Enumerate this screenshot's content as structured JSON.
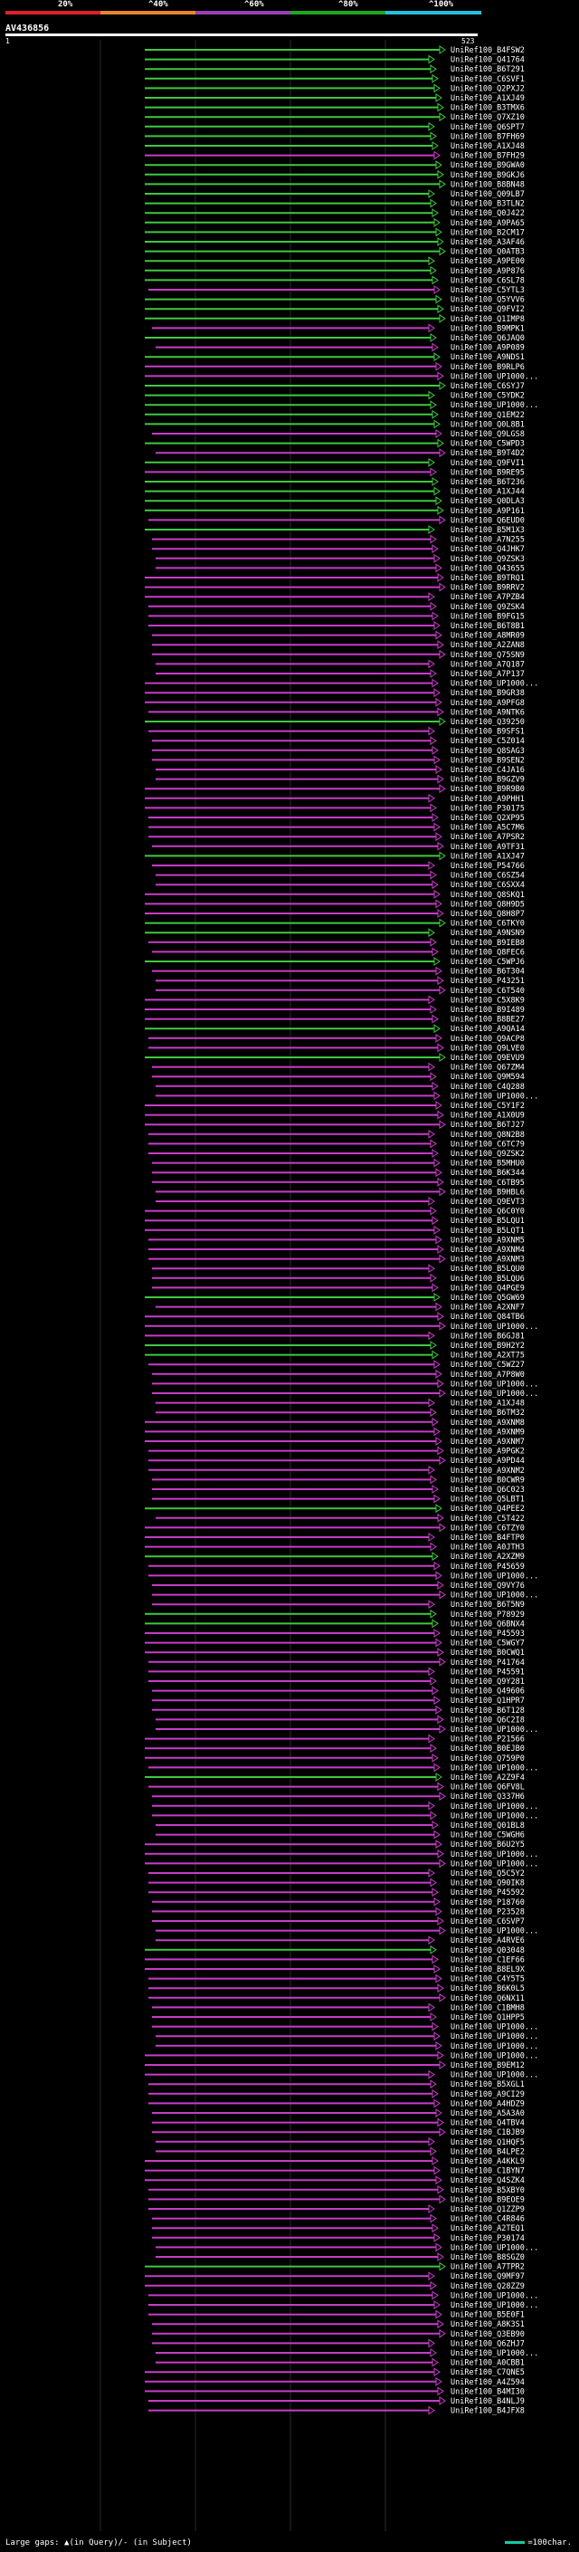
{
  "scale": {
    "labels": [
      "20%",
      "^40%",
      "^60%",
      "^80%",
      "^100%"
    ],
    "colors": [
      "#e0202a",
      "#e8862a",
      "#9b3fb5",
      "#1ea81e",
      "#25c0e0"
    ]
  },
  "query": {
    "id": "AV436856",
    "start": "1",
    "end": "523"
  },
  "legend": {
    "gaps_text": "Large gaps: ▲(in Query)/- (in Subject)",
    "scale_text": "=100char."
  },
  "hit_colors": {
    "high": "#3ec93e",
    "mid": "#c83cc8"
  },
  "hits": [
    {
      "label": "UniRef100_B4FSW2",
      "c": "high"
    },
    {
      "label": "UniRef100_Q41764",
      "c": "high"
    },
    {
      "label": "UniRef100_B6T291",
      "c": "high"
    },
    {
      "label": "UniRef100_C6SVF1",
      "c": "high"
    },
    {
      "label": "UniRef100_Q2PXJ2",
      "c": "high"
    },
    {
      "label": "UniRef100_A1XJ49",
      "c": "high"
    },
    {
      "label": "UniRef100_B3TMX6",
      "c": "high"
    },
    {
      "label": "UniRef100_Q7XZ10",
      "c": "high"
    },
    {
      "label": "UniRef100_Q6SPT7",
      "c": "high"
    },
    {
      "label": "UniRef100_B7FH69",
      "c": "high"
    },
    {
      "label": "UniRef100_A1XJ48",
      "c": "high"
    },
    {
      "label": "UniRef100_B7FH29",
      "c": "mid"
    },
    {
      "label": "UniRef100_B9GWA0",
      "c": "high"
    },
    {
      "label": "UniRef100_B9GKJ6",
      "c": "high"
    },
    {
      "label": "UniRef100_B8BN48",
      "c": "high"
    },
    {
      "label": "UniRef100_Q09LB7",
      "c": "high"
    },
    {
      "label": "UniRef100_B3TLN2",
      "c": "high"
    },
    {
      "label": "UniRef100_Q0J422",
      "c": "high"
    },
    {
      "label": "UniRef100_A9PA65",
      "c": "high"
    },
    {
      "label": "UniRef100_B2CM17",
      "c": "high"
    },
    {
      "label": "UniRef100_A3AF46",
      "c": "high"
    },
    {
      "label": "UniRef100_Q0ATB3",
      "c": "high"
    },
    {
      "label": "UniRef100_A9PE00",
      "c": "high"
    },
    {
      "label": "UniRef100_A9P876",
      "c": "high"
    },
    {
      "label": "UniRef100_C6SL78",
      "c": "high"
    },
    {
      "label": "UniRef100_C5YTL3",
      "c": "mid"
    },
    {
      "label": "UniRef100_Q5YVV6",
      "c": "high"
    },
    {
      "label": "UniRef100_Q9FVI2",
      "c": "high"
    },
    {
      "label": "UniRef100_Q1IMP8",
      "c": "high"
    },
    {
      "label": "UniRef100_B9MPK1",
      "c": "mid"
    },
    {
      "label": "UniRef100_Q6JAQ0",
      "c": "high"
    },
    {
      "label": "UniRef100_A9P089",
      "c": "mid"
    },
    {
      "label": "UniRef100_A9NDS1",
      "c": "high"
    },
    {
      "label": "UniRef100_B9RLP6",
      "c": "mid"
    },
    {
      "label": "UniRef100_UP1000...",
      "c": "mid"
    },
    {
      "label": "UniRef100_C6SYJ7",
      "c": "high"
    },
    {
      "label": "UniRef100_C5YDK2",
      "c": "high"
    },
    {
      "label": "UniRef100_UP1000...",
      "c": "high"
    },
    {
      "label": "UniRef100_Q1EM22",
      "c": "high"
    },
    {
      "label": "UniRef100_Q0L8B1",
      "c": "high"
    },
    {
      "label": "UniRef100_Q9LGS8",
      "c": "mid"
    },
    {
      "label": "UniRef100_C5WPD3",
      "c": "high"
    },
    {
      "label": "UniRef100_B9T4D2",
      "c": "mid"
    },
    {
      "label": "UniRef100_Q9FVI1",
      "c": "high"
    },
    {
      "label": "UniRef100_B9RE95",
      "c": "mid"
    },
    {
      "label": "UniRef100_B6T236",
      "c": "high"
    },
    {
      "label": "UniRef100_A1XJ44",
      "c": "high"
    },
    {
      "label": "UniRef100_Q0DLA3",
      "c": "high"
    },
    {
      "label": "UniRef100_A9P161",
      "c": "high"
    },
    {
      "label": "UniRef100_Q6EUD0",
      "c": "mid"
    },
    {
      "label": "UniRef100_B5M1X3",
      "c": "high"
    },
    {
      "label": "UniRef100_A7N255",
      "c": "mid"
    },
    {
      "label": "UniRef100_Q4JHK7",
      "c": "mid"
    },
    {
      "label": "UniRef100_Q9ZSK3",
      "c": "mid"
    },
    {
      "label": "UniRef100_Q43655",
      "c": "mid"
    },
    {
      "label": "UniRef100_B9TRQ1",
      "c": "mid"
    },
    {
      "label": "UniRef100_B9RRV2",
      "c": "mid"
    },
    {
      "label": "UniRef100_A7PZB4",
      "c": "mid"
    },
    {
      "label": "UniRef100_Q9ZSK4",
      "c": "mid"
    },
    {
      "label": "UniRef100_B9FG15",
      "c": "mid"
    },
    {
      "label": "UniRef100_B6T8B1",
      "c": "mid"
    },
    {
      "label": "UniRef100_A8MR09",
      "c": "mid"
    },
    {
      "label": "UniRef100_A2ZAN8",
      "c": "mid"
    },
    {
      "label": "UniRef100_Q75SN9",
      "c": "mid"
    },
    {
      "label": "UniRef100_A7Q187",
      "c": "mid"
    },
    {
      "label": "UniRef100_A7P137",
      "c": "mid"
    },
    {
      "label": "UniRef100_UP1000...",
      "c": "mid"
    },
    {
      "label": "UniRef100_B9GR38",
      "c": "mid"
    },
    {
      "label": "UniRef100_A9PFG8",
      "c": "mid"
    },
    {
      "label": "UniRef100_A9NTK6",
      "c": "mid"
    },
    {
      "label": "UniRef100_Q39250",
      "c": "high"
    },
    {
      "label": "UniRef100_B9SFS1",
      "c": "mid"
    },
    {
      "label": "UniRef100_C5Z014",
      "c": "mid"
    },
    {
      "label": "UniRef100_Q8SAG3",
      "c": "mid"
    },
    {
      "label": "UniRef100_B9SEN2",
      "c": "mid"
    },
    {
      "label": "UniRef100_C4JA16",
      "c": "mid"
    },
    {
      "label": "UniRef100_B9GZV9",
      "c": "mid"
    },
    {
      "label": "UniRef100_B9R9B0",
      "c": "mid"
    },
    {
      "label": "UniRef100_A9PHH1",
      "c": "mid"
    },
    {
      "label": "UniRef100_P30175",
      "c": "mid"
    },
    {
      "label": "UniRef100_Q2XP95",
      "c": "mid"
    },
    {
      "label": "UniRef100_A5C7M6",
      "c": "mid"
    },
    {
      "label": "UniRef100_A7PSR2",
      "c": "mid"
    },
    {
      "label": "UniRef100_A9TF31",
      "c": "mid"
    },
    {
      "label": "UniRef100_A1XJ47",
      "c": "high"
    },
    {
      "label": "UniRef100_P54766",
      "c": "mid"
    },
    {
      "label": "UniRef100_C6SZ54",
      "c": "mid"
    },
    {
      "label": "UniRef100_C6SXX4",
      "c": "mid"
    },
    {
      "label": "UniRef100_Q8SKQ1",
      "c": "mid"
    },
    {
      "label": "UniRef100_Q8H9D5",
      "c": "mid"
    },
    {
      "label": "UniRef100_Q8H8P7",
      "c": "mid"
    },
    {
      "label": "UniRef100_C6TKY0",
      "c": "high"
    },
    {
      "label": "UniRef100_A9NSN9",
      "c": "high"
    },
    {
      "label": "UniRef100_B9IEB8",
      "c": "mid"
    },
    {
      "label": "UniRef100_Q8FEC6",
      "c": "mid"
    },
    {
      "label": "UniRef100_C5WPJ6",
      "c": "high"
    },
    {
      "label": "UniRef100_B6T304",
      "c": "mid"
    },
    {
      "label": "UniRef100_P43251",
      "c": "mid"
    },
    {
      "label": "UniRef100_C6T540",
      "c": "mid"
    },
    {
      "label": "UniRef100_C5X8K9",
      "c": "mid"
    },
    {
      "label": "UniRef100_B9I489",
      "c": "mid"
    },
    {
      "label": "UniRef100_B8BE27",
      "c": "mid"
    },
    {
      "label": "UniRef100_A9QA14",
      "c": "high"
    },
    {
      "label": "UniRef100_Q9ACP8",
      "c": "mid"
    },
    {
      "label": "UniRef100_Q9LVE0",
      "c": "mid"
    },
    {
      "label": "UniRef100_Q9EVU9",
      "c": "high"
    },
    {
      "label": "UniRef100_Q67ZM4",
      "c": "mid"
    },
    {
      "label": "UniRef100_Q9M594",
      "c": "mid"
    },
    {
      "label": "UniRef100_C4Q288",
      "c": "mid"
    },
    {
      "label": "UniRef100_UP1000...",
      "c": "mid"
    },
    {
      "label": "UniRef100_C5Y1F2",
      "c": "mid"
    },
    {
      "label": "UniRef100_A1X0U9",
      "c": "mid"
    },
    {
      "label": "UniRef100_B6TJ27",
      "c": "mid"
    },
    {
      "label": "UniRef100_Q8N2B8",
      "c": "mid"
    },
    {
      "label": "UniRef100_C6TC79",
      "c": "mid"
    },
    {
      "label": "UniRef100_Q9ZSK2",
      "c": "mid"
    },
    {
      "label": "UniRef100_B5MHU0",
      "c": "mid"
    },
    {
      "label": "UniRef100_B6K344",
      "c": "mid"
    },
    {
      "label": "UniRef100_C6TB95",
      "c": "mid"
    },
    {
      "label": "UniRef100_B9HBL6",
      "c": "mid"
    },
    {
      "label": "UniRef100_Q9EVT3",
      "c": "mid"
    },
    {
      "label": "UniRef100_Q6C0Y0",
      "c": "mid"
    },
    {
      "label": "UniRef100_B5LQU1",
      "c": "mid"
    },
    {
      "label": "UniRef100_B5LQT1",
      "c": "mid"
    },
    {
      "label": "UniRef100_A9XNM5",
      "c": "mid"
    },
    {
      "label": "UniRef100_A9XNM4",
      "c": "mid"
    },
    {
      "label": "UniRef100_A9XNM3",
      "c": "mid"
    },
    {
      "label": "UniRef100_B5LQU0",
      "c": "mid"
    },
    {
      "label": "UniRef100_B5LQU6",
      "c": "mid"
    },
    {
      "label": "UniRef100_Q4PGE9",
      "c": "mid"
    },
    {
      "label": "UniRef100_Q5GW69",
      "c": "high"
    },
    {
      "label": "UniRef100_A2XNF7",
      "c": "mid"
    },
    {
      "label": "UniRef100_Q84TB6",
      "c": "mid"
    },
    {
      "label": "UniRef100_UP1000...",
      "c": "mid"
    },
    {
      "label": "UniRef100_B6GJ81",
      "c": "mid"
    },
    {
      "label": "UniRef100_B9H2Y2",
      "c": "high"
    },
    {
      "label": "UniRef100_A2XT75",
      "c": "high"
    },
    {
      "label": "UniRef100_C5WZ27",
      "c": "mid"
    },
    {
      "label": "UniRef100_A7P8W0",
      "c": "mid"
    },
    {
      "label": "UniRef100_UP1000...",
      "c": "mid"
    },
    {
      "label": "UniRef100_UP1000...",
      "c": "mid"
    },
    {
      "label": "UniRef100_A1XJ48",
      "c": "mid"
    },
    {
      "label": "UniRef100_B6TM32",
      "c": "mid"
    },
    {
      "label": "UniRef100_A9XNM8",
      "c": "mid"
    },
    {
      "label": "UniRef100_A9XNM9",
      "c": "mid"
    },
    {
      "label": "UniRef100_A9XNM7",
      "c": "mid"
    },
    {
      "label": "UniRef100_A9PGK2",
      "c": "mid"
    },
    {
      "label": "UniRef100_A9PD44",
      "c": "mid"
    },
    {
      "label": "UniRef100_A9XNM2",
      "c": "mid"
    },
    {
      "label": "UniRef100_B0CWR9",
      "c": "mid"
    },
    {
      "label": "UniRef100_Q6C023",
      "c": "mid"
    },
    {
      "label": "UniRef100_Q5LBT1",
      "c": "mid"
    },
    {
      "label": "UniRef100_Q4PEE2",
      "c": "high"
    },
    {
      "label": "UniRef100_C5T422",
      "c": "mid"
    },
    {
      "label": "UniRef100_C6TZY0",
      "c": "mid"
    },
    {
      "label": "UniRef100_B4FTP0",
      "c": "mid"
    },
    {
      "label": "UniRef100_A0JTH3",
      "c": "mid"
    },
    {
      "label": "UniRef100_A2XZM9",
      "c": "high"
    },
    {
      "label": "UniRef100_P45659",
      "c": "mid"
    },
    {
      "label": "UniRef100_UP1000...",
      "c": "mid"
    },
    {
      "label": "UniRef100_Q9VY76",
      "c": "mid"
    },
    {
      "label": "UniRef100_UP1000...",
      "c": "mid"
    },
    {
      "label": "UniRef100_B6T5N9",
      "c": "mid"
    },
    {
      "label": "UniRef100_P78929",
      "c": "high"
    },
    {
      "label": "UniRef100_Q6BNX4",
      "c": "high"
    },
    {
      "label": "UniRef100_P45593",
      "c": "mid"
    },
    {
      "label": "UniRef100_C5WGY7",
      "c": "mid"
    },
    {
      "label": "UniRef100_B0CWQ1",
      "c": "mid"
    },
    {
      "label": "UniRef100_P41764",
      "c": "mid"
    },
    {
      "label": "UniRef100_P45591",
      "c": "mid"
    },
    {
      "label": "UniRef100_Q9Y281",
      "c": "mid"
    },
    {
      "label": "UniRef100_Q49606",
      "c": "mid"
    },
    {
      "label": "UniRef100_Q1HPR7",
      "c": "mid"
    },
    {
      "label": "UniRef100_B6T128",
      "c": "mid"
    },
    {
      "label": "UniRef100_Q6C2I8",
      "c": "mid"
    },
    {
      "label": "UniRef100_UP1000...",
      "c": "mid"
    },
    {
      "label": "UniRef100_P21566",
      "c": "mid"
    },
    {
      "label": "UniRef100_B0EJB0",
      "c": "mid"
    },
    {
      "label": "UniRef100_Q759P0",
      "c": "mid"
    },
    {
      "label": "UniRef100_UP1000...",
      "c": "mid"
    },
    {
      "label": "UniRef100_A2Z9F4",
      "c": "high"
    },
    {
      "label": "UniRef100_Q6FV8L",
      "c": "mid"
    },
    {
      "label": "UniRef100_Q337H6",
      "c": "mid"
    },
    {
      "label": "UniRef100_UP1000...",
      "c": "mid"
    },
    {
      "label": "UniRef100_UP1000...",
      "c": "mid"
    },
    {
      "label": "UniRef100_Q01BL8",
      "c": "mid"
    },
    {
      "label": "UniRef100_C5WGH6",
      "c": "mid"
    },
    {
      "label": "UniRef100_B6U2Y5",
      "c": "mid"
    },
    {
      "label": "UniRef100_UP1000...",
      "c": "mid"
    },
    {
      "label": "UniRef100_UP1000...",
      "c": "mid"
    },
    {
      "label": "UniRef100_Q5C5Y2",
      "c": "mid"
    },
    {
      "label": "UniRef100_Q90IK8",
      "c": "mid"
    },
    {
      "label": "UniRef100_P45592",
      "c": "mid"
    },
    {
      "label": "UniRef100_P18760",
      "c": "mid"
    },
    {
      "label": "UniRef100_P23528",
      "c": "mid"
    },
    {
      "label": "UniRef100_C6SVP7",
      "c": "mid"
    },
    {
      "label": "UniRef100_UP1000...",
      "c": "mid"
    },
    {
      "label": "UniRef100_A4RVE6",
      "c": "mid"
    },
    {
      "label": "UniRef100_Q03048",
      "c": "high"
    },
    {
      "label": "UniRef100_C1EF66",
      "c": "mid"
    },
    {
      "label": "UniRef100_B8EL9X",
      "c": "mid"
    },
    {
      "label": "UniRef100_C4Y5T5",
      "c": "mid"
    },
    {
      "label": "UniRef100_B6K0L5",
      "c": "mid"
    },
    {
      "label": "UniRef100_Q6NX11",
      "c": "mid"
    },
    {
      "label": "UniRef100_C1BMH8",
      "c": "mid"
    },
    {
      "label": "UniRef100_Q1HPP5",
      "c": "mid"
    },
    {
      "label": "UniRef100_UP1000...",
      "c": "mid"
    },
    {
      "label": "UniRef100_UP1000...",
      "c": "mid"
    },
    {
      "label": "UniRef100_UP1000...",
      "c": "mid"
    },
    {
      "label": "UniRef100_UP1000...",
      "c": "mid"
    },
    {
      "label": "UniRef100_B9EM12",
      "c": "mid"
    },
    {
      "label": "UniRef100_UP1000...",
      "c": "mid"
    },
    {
      "label": "UniRef100_B5XGL1",
      "c": "mid"
    },
    {
      "label": "UniRef100_A9CI29",
      "c": "mid"
    },
    {
      "label": "UniRef100_A4HDZ9",
      "c": "mid"
    },
    {
      "label": "UniRef100_A5A3A0",
      "c": "mid"
    },
    {
      "label": "UniRef100_Q4TBV4",
      "c": "mid"
    },
    {
      "label": "UniRef100_C1BJB9",
      "c": "mid"
    },
    {
      "label": "UniRef100_Q1HQF5",
      "c": "mid"
    },
    {
      "label": "UniRef100_B4LPE2",
      "c": "mid"
    },
    {
      "label": "UniRef100_A4KKL9",
      "c": "mid"
    },
    {
      "label": "UniRef100_C1BYN7",
      "c": "mid"
    },
    {
      "label": "UniRef100_Q4SZK4",
      "c": "mid"
    },
    {
      "label": "UniRef100_B5XBY0",
      "c": "mid"
    },
    {
      "label": "UniRef100_B9EOE9",
      "c": "mid"
    },
    {
      "label": "UniRef100_Q1ZZP9",
      "c": "mid"
    },
    {
      "label": "UniRef100_C4R846",
      "c": "mid"
    },
    {
      "label": "UniRef100_A2TEQ1",
      "c": "mid"
    },
    {
      "label": "UniRef100_P30174",
      "c": "mid"
    },
    {
      "label": "UniRef100_UP1000...",
      "c": "mid"
    },
    {
      "label": "UniRef100_B8SGZ0",
      "c": "mid"
    },
    {
      "label": "UniRef100_A7TPR2",
      "c": "high"
    },
    {
      "label": "UniRef100_Q9MF97",
      "c": "mid"
    },
    {
      "label": "UniRef100_Q28ZZ9",
      "c": "mid"
    },
    {
      "label": "UniRef100_UP1000...",
      "c": "mid"
    },
    {
      "label": "UniRef100_UP1000...",
      "c": "mid"
    },
    {
      "label": "UniRef100_B5E0F1",
      "c": "mid"
    },
    {
      "label": "UniRef100_A8K3S1",
      "c": "mid"
    },
    {
      "label": "UniRef100_Q3EB90",
      "c": "mid"
    },
    {
      "label": "UniRef100_Q6ZHJ7",
      "c": "mid"
    },
    {
      "label": "UniRef100_UP1000...",
      "c": "mid"
    },
    {
      "label": "UniRef100_A0CBB1",
      "c": "mid"
    },
    {
      "label": "UniRef100_C7QNE5",
      "c": "mid"
    },
    {
      "label": "UniRef100_A4Z594",
      "c": "mid"
    },
    {
      "label": "UniRef100_B4MI30",
      "c": "mid"
    },
    {
      "label": "UniRef100_B4NLJ9",
      "c": "mid"
    },
    {
      "label": "UniRef100_B4JFX8",
      "c": "mid"
    }
  ]
}
